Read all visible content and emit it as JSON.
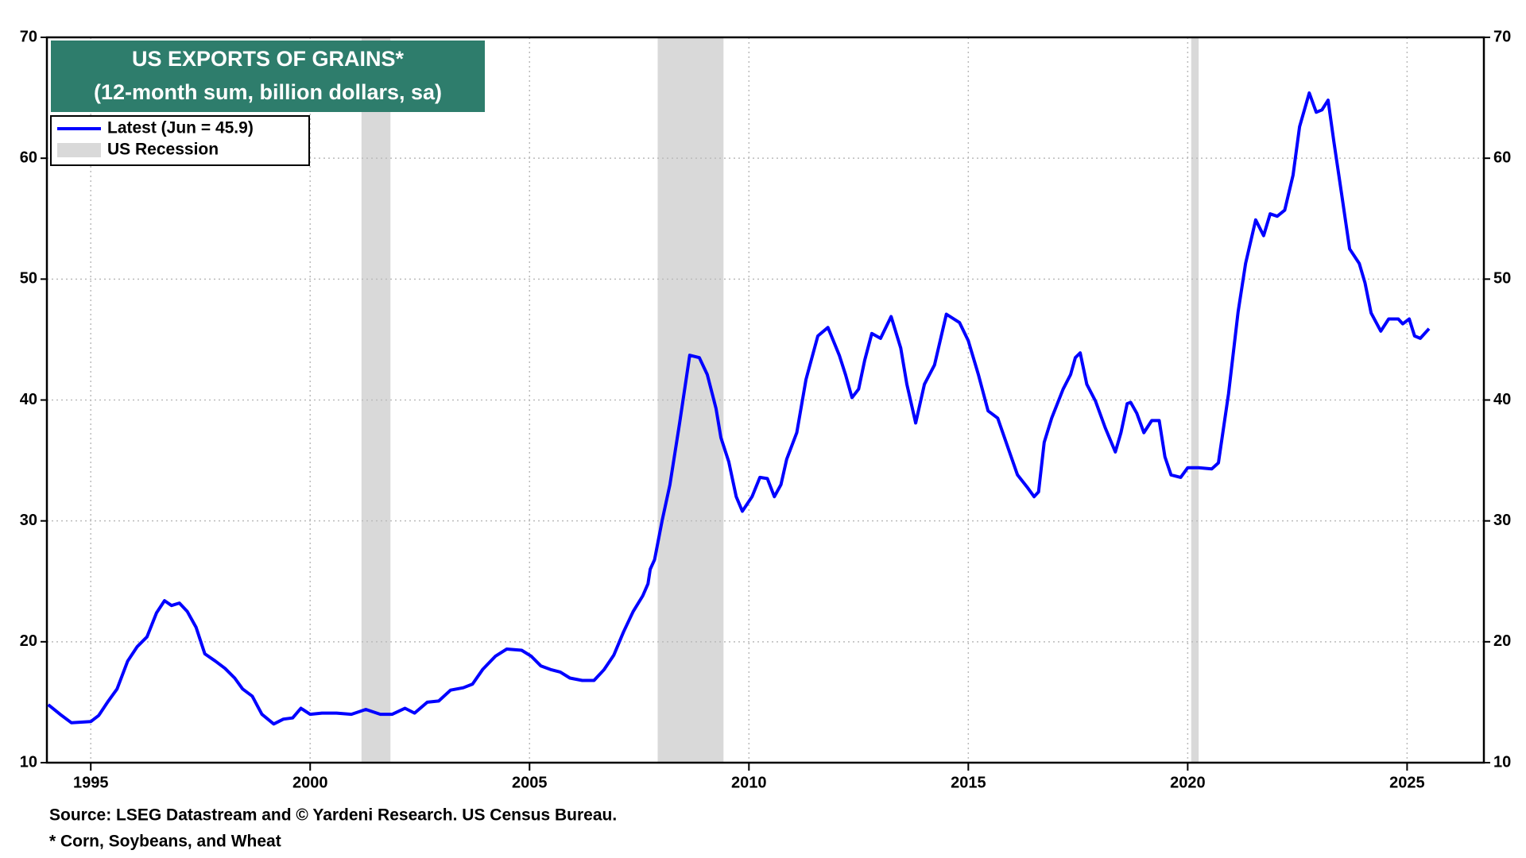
{
  "chart_data": {
    "type": "line",
    "title": "US EXPORTS OF GRAINS*",
    "subtitle": "(12-month sum, billion dollars, sa)",
    "source": "Source: LSEG Datastream and © Yardeni Research. US Census Bureau.",
    "footnote": "* Corn, Soybeans, and Wheat",
    "xlim": [
      1994.0,
      2026.75
    ],
    "xticks": [
      1995,
      2000,
      2005,
      2010,
      2015,
      2020,
      2025
    ],
    "ylim": [
      10,
      70
    ],
    "yticks": [
      10,
      20,
      30,
      40,
      50,
      60,
      70
    ],
    "y2lim": [
      10,
      70
    ],
    "y2ticks": [
      10,
      20,
      30,
      40,
      50,
      60,
      70
    ],
    "grid": true,
    "legend": "upper left",
    "recession_label": "US Recession",
    "recession_color": "#d9d9d9",
    "recessions": [
      [
        2001.17,
        2001.83
      ],
      [
        2007.92,
        2009.42
      ],
      [
        2020.08,
        2020.25
      ]
    ],
    "x": [
      1994.03,
      1994.3,
      1994.56,
      1995.0,
      1995.18,
      1995.4,
      1995.6,
      1995.84,
      1996.06,
      1996.28,
      1996.5,
      1996.68,
      1996.84,
      1997.02,
      1997.2,
      1997.4,
      1997.6,
      1997.84,
      1998.06,
      1998.28,
      1998.46,
      1998.68,
      1998.9,
      1999.17,
      1999.39,
      1999.6,
      1999.79,
      2000.0,
      2000.27,
      2000.6,
      2000.94,
      2001.27,
      2001.6,
      2001.87,
      2002.16,
      2002.38,
      2002.67,
      2002.93,
      2003.2,
      2003.49,
      2003.7,
      2003.93,
      2004.22,
      2004.48,
      2004.82,
      2005.04,
      2005.26,
      2005.48,
      2005.7,
      2005.92,
      2006.2,
      2006.47,
      2006.7,
      2006.92,
      2007.14,
      2007.36,
      2007.58,
      2007.7,
      2007.75,
      2007.85,
      2008.02,
      2008.2,
      2008.42,
      2008.65,
      2008.87,
      2009.05,
      2009.25,
      2009.36,
      2009.54,
      2009.71,
      2009.85,
      2010.07,
      2010.25,
      2010.42,
      2010.58,
      2010.73,
      2010.86,
      2011.09,
      2011.3,
      2011.57,
      2011.8,
      2012.06,
      2012.2,
      2012.35,
      2012.5,
      2012.64,
      2012.8,
      2013.0,
      2013.24,
      2013.46,
      2013.6,
      2013.8,
      2014.0,
      2014.23,
      2014.5,
      2014.8,
      2015.0,
      2015.23,
      2015.45,
      2015.67,
      2015.9,
      2016.12,
      2016.34,
      2016.5,
      2016.6,
      2016.73,
      2016.9,
      2017.16,
      2017.33,
      2017.44,
      2017.55,
      2017.7,
      2017.9,
      2018.12,
      2018.35,
      2018.48,
      2018.62,
      2018.7,
      2018.84,
      2019.0,
      2019.18,
      2019.35,
      2019.48,
      2019.62,
      2019.84,
      2020.0,
      2020.25,
      2020.55,
      2020.7,
      2020.93,
      2021.15,
      2021.32,
      2021.55,
      2021.73,
      2021.88,
      2022.04,
      2022.21,
      2022.4,
      2022.55,
      2022.77,
      2022.93,
      2023.06,
      2023.2,
      2023.33,
      2023.51,
      2023.69,
      2023.91,
      2024.04,
      2024.18,
      2024.4,
      2024.58,
      2024.8,
      2024.9,
      2025.05,
      2025.17,
      2025.3,
      2025.5
    ],
    "series": [
      {
        "name": "Latest (Jun = 45.9)",
        "color": "#0000ff",
        "values": [
          14.8,
          14.0,
          13.3,
          13.4,
          13.9,
          15.1,
          16.1,
          18.4,
          19.6,
          20.4,
          22.4,
          23.4,
          23.0,
          23.2,
          22.5,
          21.2,
          19.0,
          18.4,
          17.8,
          17.0,
          16.1,
          15.5,
          14.0,
          13.2,
          13.6,
          13.7,
          14.5,
          14.0,
          14.1,
          14.1,
          14.0,
          14.4,
          14.0,
          14.0,
          14.5,
          14.1,
          15.0,
          15.1,
          16.0,
          16.2,
          16.5,
          17.7,
          18.8,
          19.4,
          19.3,
          18.8,
          18.0,
          17.7,
          17.5,
          17.0,
          16.8,
          16.8,
          17.7,
          18.9,
          20.8,
          22.5,
          23.8,
          24.8,
          26.0,
          26.8,
          30.0,
          33.0,
          38.1,
          43.7,
          43.5,
          42.1,
          39.3,
          36.9,
          34.9,
          32.0,
          30.8,
          32.0,
          33.6,
          33.5,
          32.0,
          33.0,
          35.1,
          37.3,
          41.7,
          45.3,
          46.0,
          43.7,
          42.1,
          40.2,
          40.9,
          43.3,
          45.5,
          45.1,
          46.9,
          44.3,
          41.3,
          38.1,
          41.3,
          42.9,
          47.1,
          46.4,
          44.9,
          42.1,
          39.1,
          38.5,
          36.1,
          33.8,
          32.8,
          32.0,
          32.4,
          36.5,
          38.5,
          40.9,
          42.1,
          43.5,
          43.9,
          41.3,
          39.9,
          37.7,
          35.7,
          37.3,
          39.7,
          39.8,
          38.9,
          37.3,
          38.3,
          38.3,
          35.3,
          33.8,
          33.6,
          34.4,
          34.4,
          34.3,
          34.8,
          40.5,
          47.3,
          51.3,
          54.9,
          53.6,
          55.4,
          55.2,
          55.7,
          58.6,
          62.6,
          65.4,
          63.8,
          64.0,
          64.8,
          61.4,
          57.0,
          52.5,
          51.3,
          49.7,
          47.2,
          45.7,
          46.7,
          46.7,
          46.3,
          46.7,
          45.3,
          45.1,
          45.9
        ]
      }
    ]
  }
}
